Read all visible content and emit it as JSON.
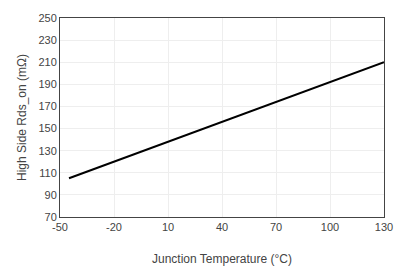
{
  "chart_data": {
    "type": "line",
    "x": [
      -45,
      130
    ],
    "values": [
      105,
      210
    ],
    "color": "#000000",
    "xlabel": "Junction Temperature (°C)",
    "ylabel": "High Side Rds_on (mΩ)",
    "xlim": [
      -50,
      130
    ],
    "ylim": [
      70,
      250
    ],
    "xticks": [
      -50,
      -20,
      10,
      40,
      70,
      100,
      130
    ],
    "yticks": [
      70,
      90,
      110,
      130,
      150,
      170,
      190,
      210,
      230,
      250
    ],
    "grid": true
  }
}
